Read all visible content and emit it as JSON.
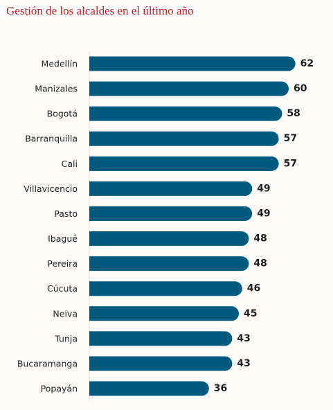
{
  "chart_data": {
    "type": "bar",
    "orientation": "horizontal",
    "title": "Gestión de los alcaldes en el último año",
    "categories": [
      "Medellín",
      "Manizales",
      "Bogotá",
      "Barranquilla",
      "Cali",
      "Villavicencio",
      "Pasto",
      "Ibagué",
      "Pereira",
      "Cúcuta",
      "Neiva",
      "Tunja",
      "Bucaramanga",
      "Popayán"
    ],
    "values": [
      62,
      60,
      58,
      57,
      57,
      49,
      49,
      48,
      48,
      46,
      45,
      43,
      43,
      36
    ],
    "xlim": [
      0,
      65
    ],
    "grid": false,
    "legend": "none",
    "bar_color": "#005a7d",
    "axis_color": "#d9d9d9",
    "title_color": "#c0202c"
  }
}
